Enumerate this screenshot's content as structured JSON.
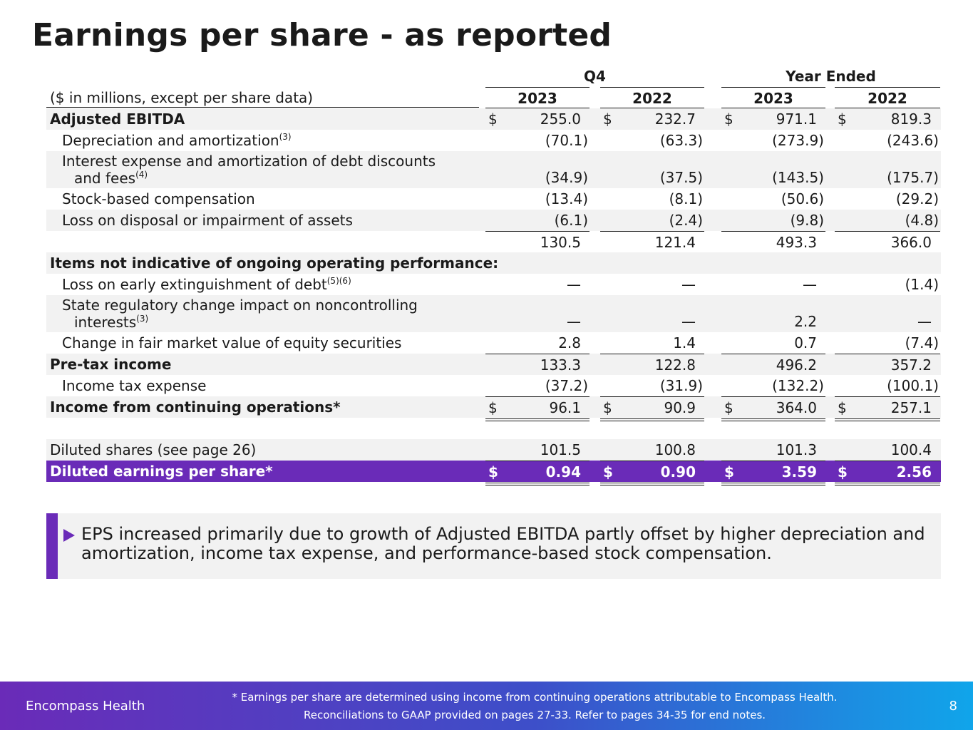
{
  "title": "Earnings per share - as reported",
  "table": {
    "group_q4": "Q4",
    "group_year": "Year Ended",
    "units_label": "($ in millions, except per share data)",
    "years": [
      "2023",
      "2022",
      "2023",
      "2022"
    ],
    "rows": [
      {
        "label": "Adjusted EBITDA",
        "v1": "255.0",
        "v2": "232.7",
        "v3": "971.1",
        "v4": "819.3"
      },
      {
        "label": "Depreciation and amortization",
        "sup": "(3)",
        "v1": "(70.1)",
        "v2": "(63.3)",
        "v3": "(273.9)",
        "v4": "(243.6)"
      },
      {
        "label_l1": "Interest expense and amortization of debt discounts",
        "label_l2": "and fees",
        "sup": "(4)",
        "v1": "(34.9)",
        "v2": "(37.5)",
        "v3": "(143.5)",
        "v4": "(175.7)"
      },
      {
        "label": "Stock-based compensation",
        "v1": "(13.4)",
        "v2": "(8.1)",
        "v3": "(50.6)",
        "v4": "(29.2)"
      },
      {
        "label": "Loss on disposal or impairment of assets",
        "v1": "(6.1)",
        "v2": "(2.4)",
        "v3": "(9.8)",
        "v4": "(4.8)"
      },
      {
        "label": "",
        "v1": "130.5",
        "v2": "121.4",
        "v3": "493.3",
        "v4": "366.0"
      },
      {
        "label": "Items not indicative of ongoing operating performance:"
      },
      {
        "label": "Loss on early extinguishment of debt",
        "sup": "(5)(6)",
        "v1": "—",
        "v2": "—",
        "v3": "—",
        "v4": "(1.4)"
      },
      {
        "label_l1": "State regulatory change impact on noncontrolling",
        "label_l2": "interests",
        "sup": "(3)",
        "v1": "—",
        "v2": "—",
        "v3": "2.2",
        "v4": "—"
      },
      {
        "label": "Change in fair market value of equity securities",
        "v1": "2.8",
        "v2": "1.4",
        "v3": "0.7",
        "v4": "(7.4)"
      },
      {
        "label": "Pre-tax income",
        "v1": "133.3",
        "v2": "122.8",
        "v3": "496.2",
        "v4": "357.2"
      },
      {
        "label": "Income tax expense",
        "v1": "(37.2)",
        "v2": "(31.9)",
        "v3": "(132.2)",
        "v4": "(100.1)"
      },
      {
        "label": "Income from continuing operations*",
        "v1": "96.1",
        "v2": "90.9",
        "v3": "364.0",
        "v4": "257.1"
      },
      {
        "label": "Diluted shares (see page 26)",
        "v1": "101.5",
        "v2": "100.8",
        "v3": "101.3",
        "v4": "100.4"
      },
      {
        "label": "Diluted earnings per share*",
        "v1": "0.94",
        "v2": "0.90",
        "v3": "3.59",
        "v4": "2.56"
      }
    ],
    "currency": "$"
  },
  "callout": "EPS increased primarily due to growth of Adjusted EBITDA partly offset by higher depreciation and amortization, income tax expense, and performance-based stock compensation.",
  "footer": {
    "brand": "Encompass Health",
    "note_line1": "* Earnings per share are determined using income from continuing operations attributable to Encompass Health.",
    "note_line2": "Reconciliations to GAAP provided on pages 27-33. Refer to pages 34-35 for end notes.",
    "page": "8"
  },
  "colors": {
    "accent": "#6a2bb8",
    "shade": "#f2f2f2",
    "footer_end": "#10a5ea"
  }
}
